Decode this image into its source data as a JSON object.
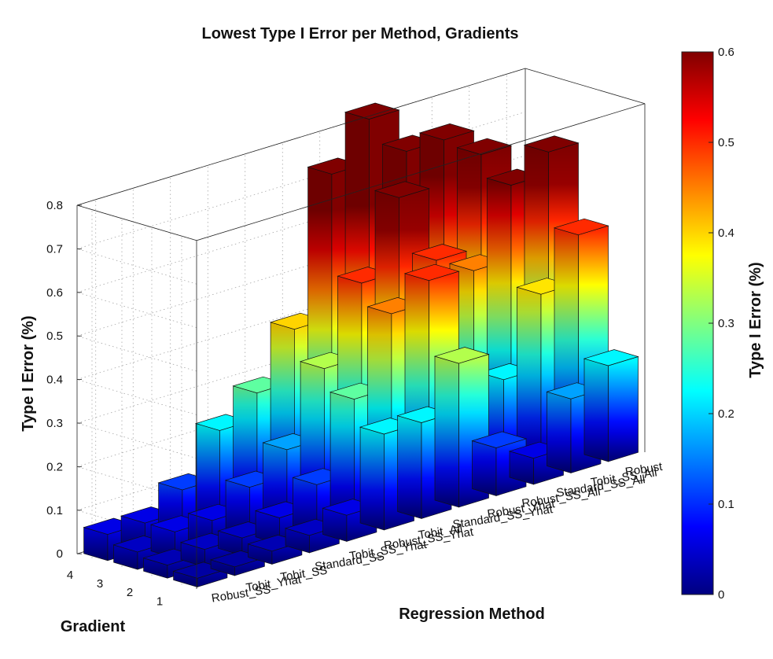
{
  "chart_data": {
    "type": "bar3d",
    "title": "Lowest Type I Error per Method, Gradients",
    "zlabel": "Type I Error (%)",
    "xlabel": "Regression Method",
    "ylabel": "Gradient",
    "zlim": [
      0,
      0.8
    ],
    "z_ticks": [
      "0",
      "0.1",
      "0.2",
      "0.3",
      "0.4",
      "0.5",
      "0.6",
      "0.7",
      "0.8"
    ],
    "gradients": [
      "1",
      "2",
      "3",
      "4"
    ],
    "methods": [
      "Robust_SS",
      "Tobit_Yhat",
      "Tobit_SS",
      "Standard_SS",
      "Robust_SS_Yhat",
      "Tobit_All",
      "Standard_SS_Yhat",
      "Robust_Yhat",
      "Robust_SS_All",
      "Standard_SS_All",
      "Tobit_SS_All",
      "Robust_All"
    ],
    "method_labels_shown": [
      "Robust_SS",
      "Tobit_Yhat",
      "Tobit_SS",
      "Standard_SS",
      "Tobit_SS_Yhat",
      "Robust_SS_Yhat",
      "Tobit_All",
      "Standard_SS_Yhat",
      "Robust_Yhat",
      "Robust_SS_All",
      "Standard_SS_All",
      "Tobit_SS_All",
      "Robust"
    ],
    "values": [
      [
        0.02,
        0.02,
        0.03,
        0.04,
        0.06,
        0.22,
        0.22,
        0.33,
        0.11,
        0.06,
        0.17,
        0.22
      ],
      [
        0.03,
        0.04,
        0.04,
        0.06,
        0.11,
        0.28,
        0.45,
        0.5,
        0.22,
        0.22,
        0.39,
        0.5
      ],
      [
        0.04,
        0.06,
        0.06,
        0.11,
        0.17,
        0.33,
        0.5,
        0.67,
        0.5,
        0.45,
        0.62,
        0.67
      ],
      [
        0.06,
        0.06,
        0.11,
        0.22,
        0.28,
        0.4,
        0.73,
        0.83,
        0.73,
        0.73,
        0.67,
        0.56
      ]
    ],
    "grid": true,
    "colormap": "jet",
    "colorbar": {
      "label": "Type I Error (%)",
      "range": [
        0,
        0.6
      ],
      "ticks": [
        "0",
        "0.1",
        "0.2",
        "0.3",
        "0.4",
        "0.5",
        "0.6"
      ]
    }
  }
}
